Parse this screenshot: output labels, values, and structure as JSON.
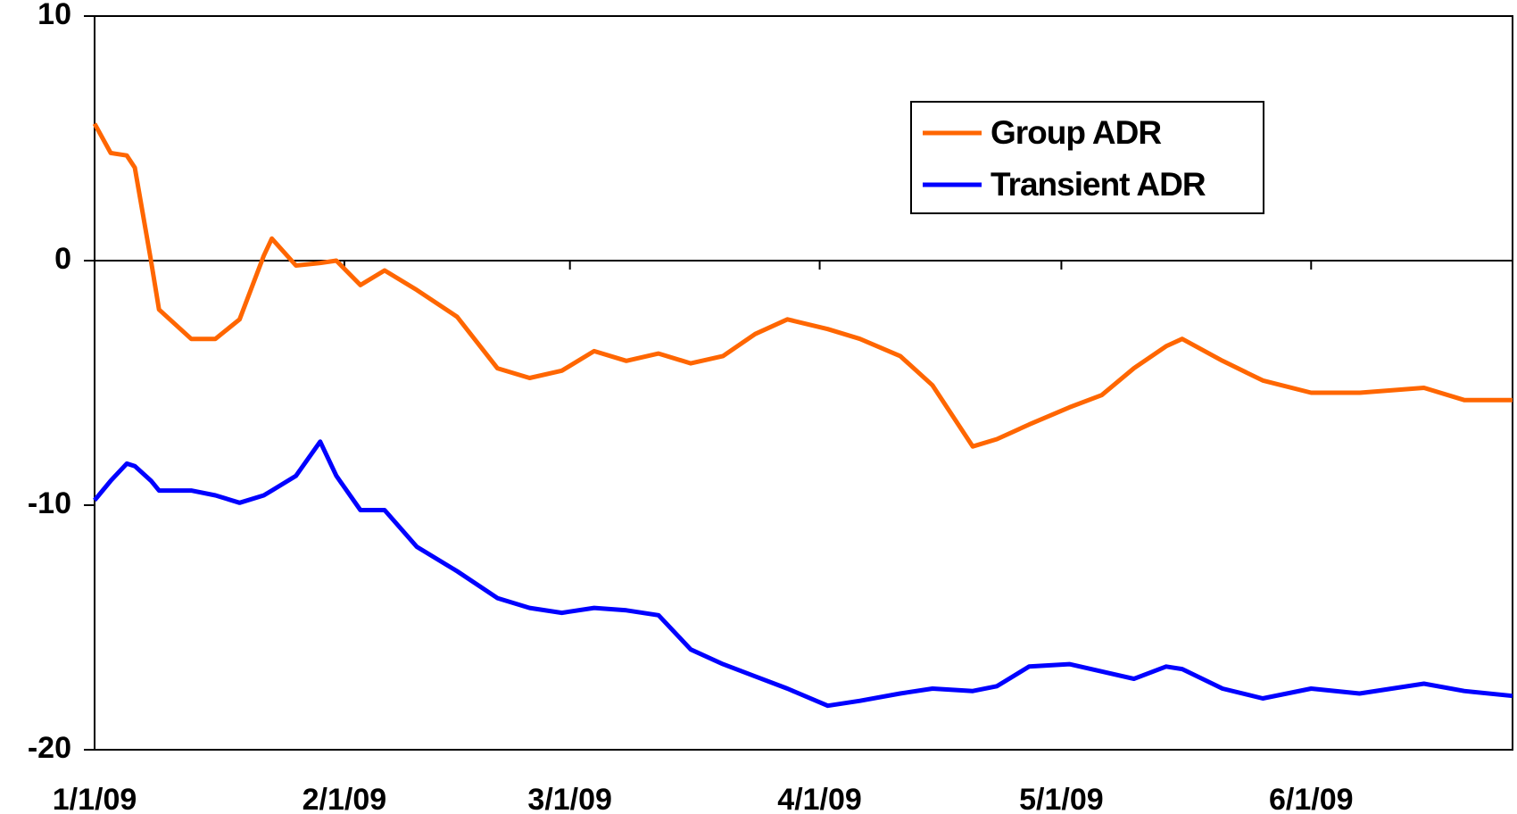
{
  "chart_data": {
    "type": "line",
    "x": [
      "1/1/09",
      "1/3/09",
      "1/5/09",
      "1/6/09",
      "1/8/09",
      "1/9/09",
      "1/13/09",
      "1/16/09",
      "1/19/09",
      "1/22/09",
      "1/23/09",
      "1/26/09",
      "1/29/09",
      "1/31/09",
      "2/3/09",
      "2/6/09",
      "2/10/09",
      "2/15/09",
      "2/20/09",
      "2/24/09",
      "2/28/09",
      "3/4/09",
      "3/8/09",
      "3/12/09",
      "3/16/09",
      "3/20/09",
      "3/24/09",
      "3/28/09",
      "4/2/09",
      "4/6/09",
      "4/11/09",
      "4/15/09",
      "4/20/09",
      "4/23/09",
      "4/27/09",
      "5/2/09",
      "5/6/09",
      "5/10/09",
      "5/14/09",
      "5/16/09",
      "5/21/09",
      "5/26/09",
      "6/1/09",
      "6/7/09",
      "6/15/09",
      "6/20/09",
      "6/26/09"
    ],
    "series": [
      {
        "name": "Group ADR",
        "color": "#ff6600",
        "values": [
          5.6,
          4.4,
          4.3,
          3.8,
          0,
          -2,
          -3.2,
          -3.2,
          -2.4,
          0.2,
          0.9,
          -0.2,
          -0.1,
          0,
          -1,
          -0.4,
          -1.2,
          -2.3,
          -4.4,
          -4.8,
          -4.5,
          -3.7,
          -4.1,
          -3.8,
          -4.2,
          -3.9,
          -3.0,
          -2.4,
          -2.8,
          -3.2,
          -3.9,
          -5.1,
          -7.6,
          -7.3,
          -6.7,
          -6.0,
          -5.5,
          -4.4,
          -3.5,
          -3.2,
          -4.1,
          -4.9,
          -5.4,
          -5.4,
          -5.2,
          -5.7,
          -5.7
        ]
      },
      {
        "name": "Transient ADR",
        "color": "#0000ff",
        "values": [
          -9.8,
          -9.0,
          -8.3,
          -8.4,
          -9.0,
          -9.4,
          -9.4,
          -9.6,
          -9.9,
          -9.6,
          -9.4,
          -8.8,
          -7.4,
          -8.8,
          -10.2,
          -10.2,
          -11.7,
          -12.7,
          -13.8,
          -14.2,
          -14.4,
          -14.2,
          -14.3,
          -14.5,
          -15.9,
          -16.5,
          -17.0,
          -17.5,
          -18.2,
          -18.0,
          -17.7,
          -17.5,
          -17.6,
          -17.4,
          -16.6,
          -16.5,
          -16.8,
          -17.1,
          -16.6,
          -16.7,
          -17.5,
          -17.9,
          -17.5,
          -17.7,
          -17.3,
          -17.6,
          -17.8
        ]
      }
    ],
    "xlim": [
      "1/1/09",
      "6/26/09"
    ],
    "xticks": [
      "1/1/09",
      "2/1/09",
      "3/1/09",
      "4/1/09",
      "5/1/09",
      "6/1/09"
    ],
    "ylim": [
      -20,
      10
    ],
    "yticks": [
      -20,
      -10,
      0,
      10
    ]
  }
}
